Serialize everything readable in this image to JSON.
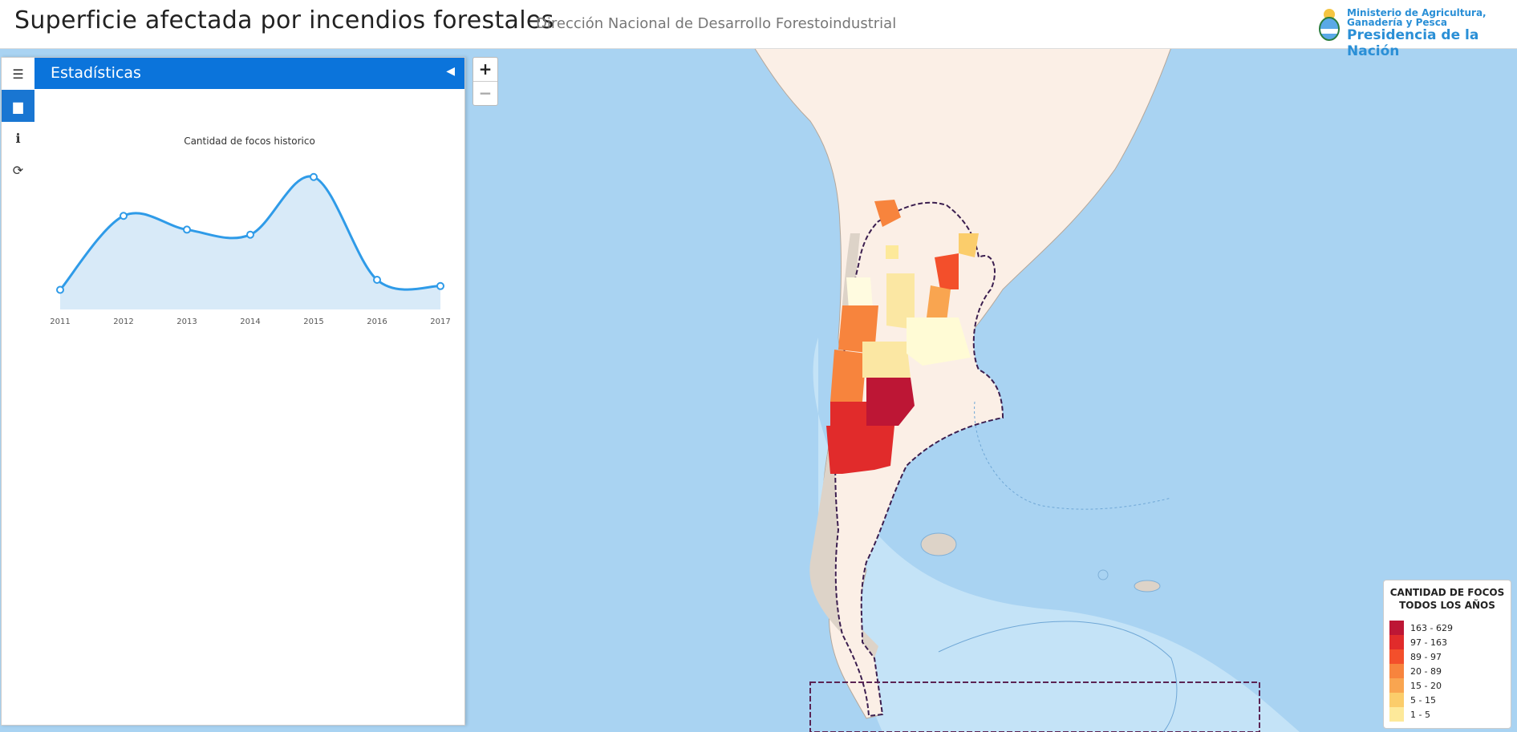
{
  "header": {
    "title": "Superficie afectada por incendios forestales",
    "subtitle": "Dirección Nacional de Desarrollo Forestoindustrial",
    "logo_ministry_line1": "Ministerio de Agricultura,",
    "logo_ministry_line2": "Ganadería y Pesca",
    "logo_presidencia": "Presidencia de la Nación"
  },
  "sidebar": {
    "tabs": [
      {
        "icon": "menu-icon",
        "glyph": "☰"
      },
      {
        "icon": "bar-chart-icon",
        "glyph": "▆",
        "active": true
      },
      {
        "icon": "info-icon",
        "glyph": "ℹ"
      },
      {
        "icon": "refresh-icon",
        "glyph": "⟳"
      }
    ],
    "panel_title": "Estadísticas",
    "collapse_glyph": "◀"
  },
  "chart_data": {
    "type": "area",
    "title": "Cantidad de focos historico",
    "categories": [
      "2011",
      "2012",
      "2013",
      "2014",
      "2015",
      "2016",
      "2017"
    ],
    "values": [
      8,
      67,
      56,
      52,
      98,
      16,
      11
    ],
    "ylim": [
      0,
      110
    ],
    "color": "#2f9be8"
  },
  "map_controls": {
    "zoom_in": "+",
    "zoom_out": "−"
  },
  "legend": {
    "title_line1": "CANTIDAD DE FOCOS",
    "title_line2": "TODOS LOS AÑOS",
    "items": [
      {
        "label": "163 - 629",
        "color": "#bd1635"
      },
      {
        "label": "97 - 163",
        "color": "#e12b2b"
      },
      {
        "label": "89 - 97",
        "color": "#f34f2b"
      },
      {
        "label": "20 - 89",
        "color": "#f7843d"
      },
      {
        "label": "15 - 20",
        "color": "#f9a550"
      },
      {
        "label": "5 - 15",
        "color": "#fbcd6b"
      },
      {
        "label": "1 - 5",
        "color": "#fde99a"
      }
    ]
  }
}
